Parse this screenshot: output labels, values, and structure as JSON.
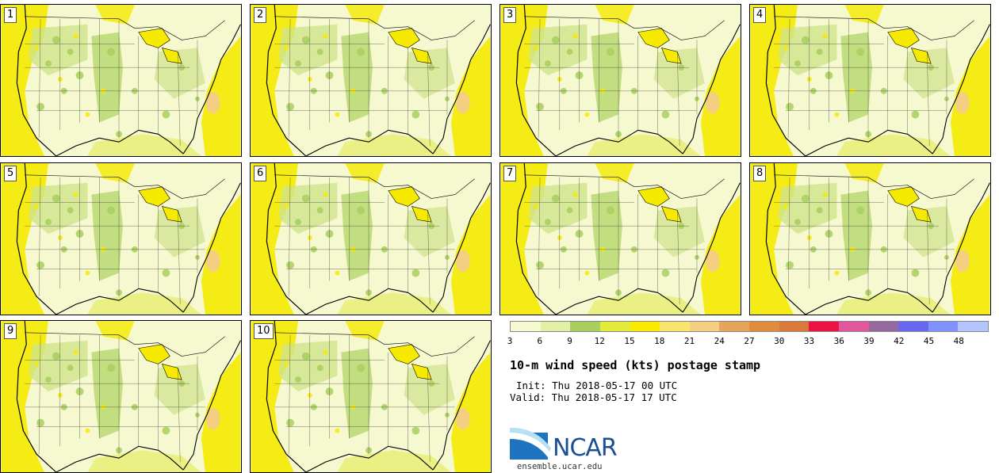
{
  "panels": [
    {
      "label": "1"
    },
    {
      "label": "2"
    },
    {
      "label": "3"
    },
    {
      "label": "4"
    },
    {
      "label": "5"
    },
    {
      "label": "6"
    },
    {
      "label": "7"
    },
    {
      "label": "8"
    },
    {
      "label": "9"
    },
    {
      "label": "10"
    }
  ],
  "legend": {
    "colors": [
      "#f6f9cf",
      "#e2f0a6",
      "#a9cf5f",
      "#e4ea3a",
      "#f9ea00",
      "#f9e56e",
      "#f4cf82",
      "#e8a459",
      "#e08b3d",
      "#da7a38",
      "#ec1244",
      "#e2579c",
      "#97689f",
      "#6767f0",
      "#7f92ff",
      "#b3c4ff"
    ],
    "ticks": [
      "3",
      "6",
      "9",
      "12",
      "15",
      "18",
      "21",
      "24",
      "27",
      "30",
      "33",
      "36",
      "39",
      "42",
      "45",
      "48"
    ]
  },
  "title": "10-m wind speed (kts) postage stamp",
  "init": "Init: Thu 2018-05-17 00 UTC",
  "valid": "Valid: Thu 2018-05-17 17 UTC",
  "logo": {
    "word": "NCAR",
    "site": "ensemble.ucar.edu"
  }
}
